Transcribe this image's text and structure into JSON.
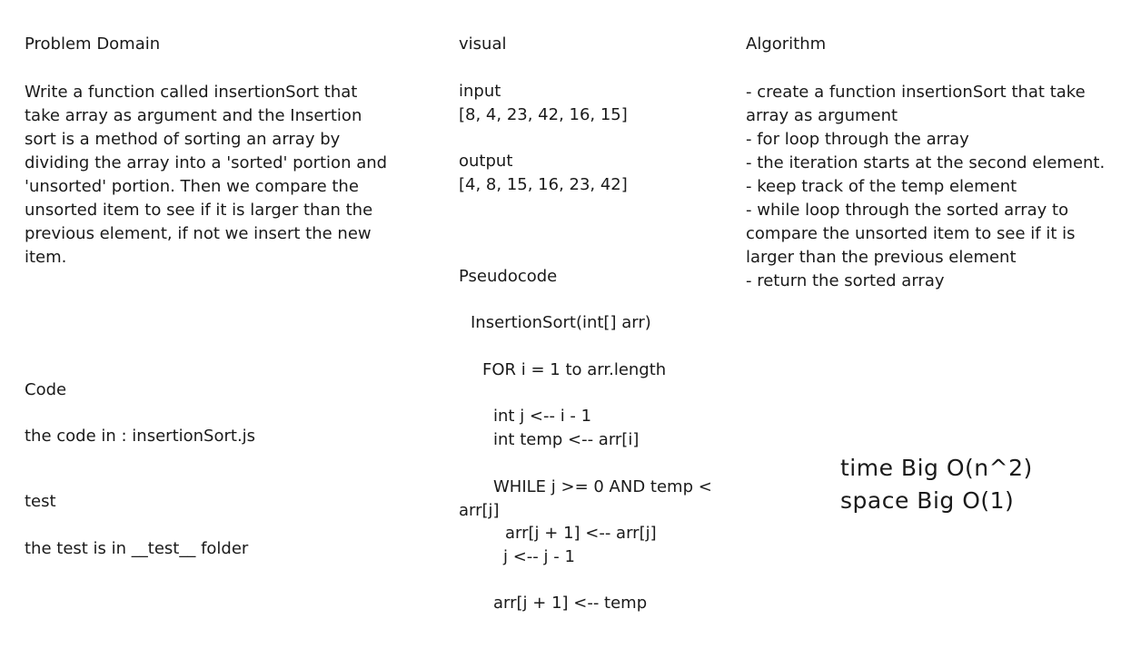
{
  "problem_domain": {
    "heading": "Problem Domain",
    "text": "Write a function called insertionSort that take array as argument and the Insertion sort is a method of sorting an array by dividing the array into a 'sorted' portion and 'unsorted' portion. Then we compare the unsorted item to see if it is larger than the previous element, if not we insert the new item."
  },
  "visual": {
    "heading": "visual",
    "input_label": "input",
    "input_value": "[8, 4, 23, 42, 16, 15]",
    "output_label": "output",
    "output_value": "[4, 8, 15, 16, 23, 42]"
  },
  "algorithm": {
    "heading": "Algorithm",
    "text": "- create a function insertionSort that take array as argument\n- for loop through the array\n- the iteration starts at the second element.\n- keep track of the temp element\n- while loop through the sorted array to compare the unsorted item to see if it is larger than the previous element\n- return the sorted array"
  },
  "pseudocode": {
    "heading": "Pseudocode",
    "lines": [
      "InsertionSort(int[] arr)",
      "FOR i = 1 to arr.length",
      "int j <-- i - 1",
      "int temp <-- arr[i]",
      "WHILE j >= 0 AND temp <",
      "arr[j]",
      "arr[j + 1] <-- arr[j]",
      "j <-- j - 1",
      "arr[j + 1] <-- temp"
    ]
  },
  "code": {
    "heading": "Code",
    "text": "the code in : insertionSort.js"
  },
  "test": {
    "heading": "test",
    "text": "the test is in __test__ folder"
  },
  "complexity": {
    "time": "time Big O(n^2)",
    "space": "space Big O(1)"
  }
}
